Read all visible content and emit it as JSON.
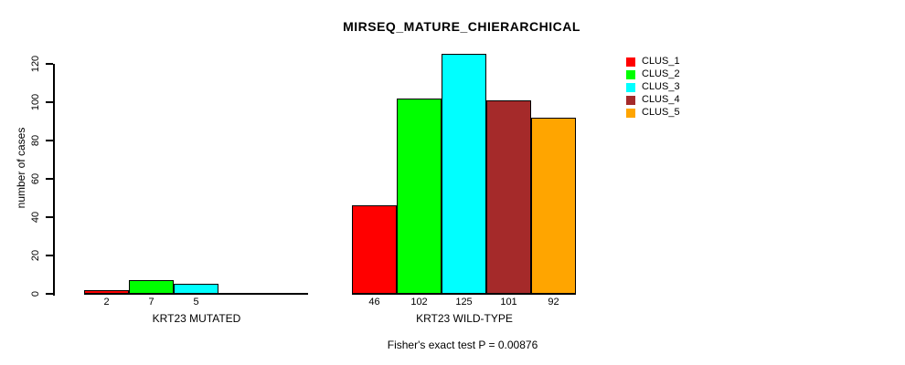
{
  "chart_data": {
    "type": "bar",
    "title": "MIRSEQ_MATURE_CHIERARCHICAL",
    "ylabel": "number of cases",
    "ylim": [
      0,
      120
    ],
    "yticks": [
      0,
      20,
      40,
      60,
      80,
      100,
      120
    ],
    "grid": false,
    "legend_position": "top-right-outside",
    "categories": [
      "KRT23 MUTATED",
      "KRT23 WILD-TYPE"
    ],
    "series": [
      {
        "name": "CLUS_1",
        "color": "#ff0000",
        "values": [
          2,
          46
        ]
      },
      {
        "name": "CLUS_2",
        "color": "#00ff00",
        "values": [
          7,
          102
        ]
      },
      {
        "name": "CLUS_3",
        "color": "#00ffff",
        "values": [
          5,
          125
        ]
      },
      {
        "name": "CLUS_4",
        "color": "#a52a2a",
        "values": [
          0,
          101
        ]
      },
      {
        "name": "CLUS_5",
        "color": "#ffa500",
        "values": [
          0,
          92
        ]
      }
    ],
    "groups": [
      {
        "label": "KRT23 MUTATED",
        "values": [
          2,
          7,
          5,
          0,
          0
        ],
        "bar_labels": [
          "2",
          "7",
          "5",
          "",
          ""
        ]
      },
      {
        "label": "KRT23 WILD-TYPE",
        "values": [
          46,
          102,
          125,
          101,
          92
        ],
        "bar_labels": [
          "46",
          "102",
          "125",
          "101",
          "92"
        ]
      }
    ],
    "annotation": "Fisher's exact test P = 0.00876"
  }
}
